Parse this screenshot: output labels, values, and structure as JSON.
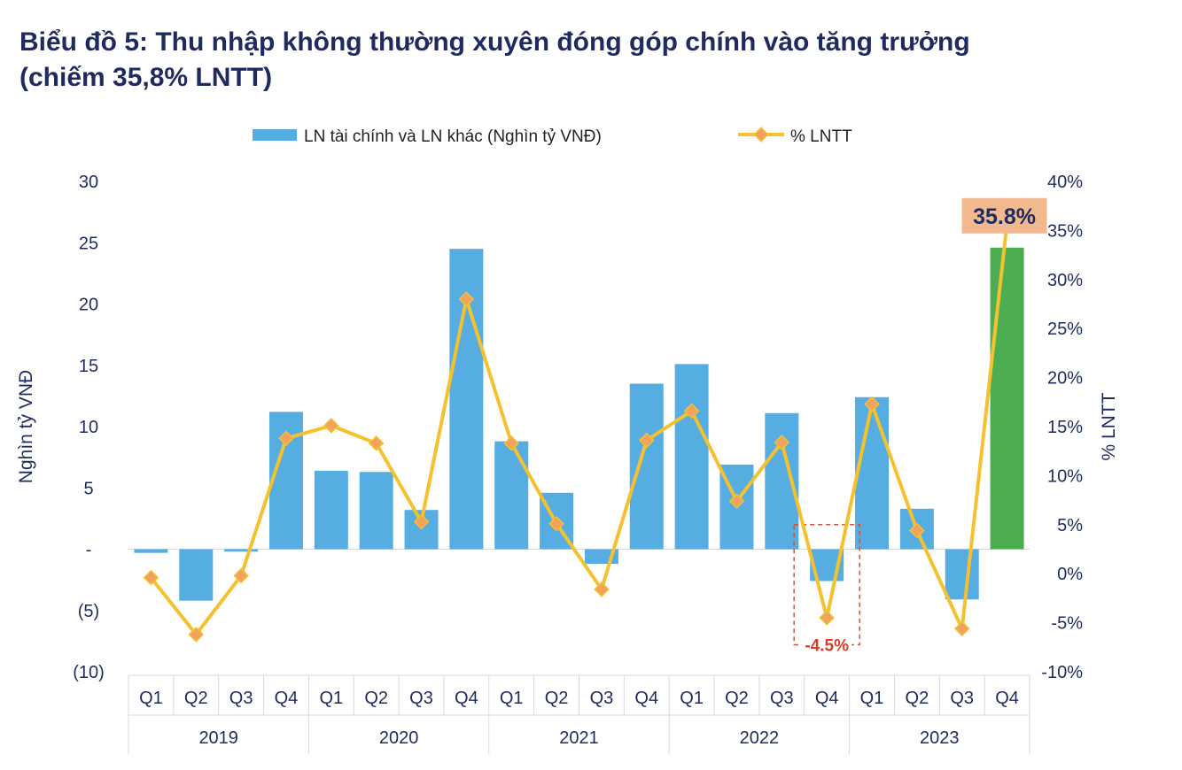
{
  "chart_data": {
    "type": "bar",
    "title": "Biểu đồ 5: Thu nhập không thường xuyên đóng góp chính vào tăng trưởng",
    "subtitle": "(chiếm 35,8% LNTT)",
    "categories": [
      "Q1",
      "Q2",
      "Q3",
      "Q4",
      "Q1",
      "Q2",
      "Q3",
      "Q4",
      "Q1",
      "Q2",
      "Q3",
      "Q4",
      "Q1",
      "Q2",
      "Q3",
      "Q4",
      "Q1",
      "Q2",
      "Q3",
      "Q4"
    ],
    "years": [
      "2019",
      "2020",
      "2021",
      "2022",
      "2023"
    ],
    "series": [
      {
        "name": "LN tài chính và LN khác (Nghìn tỷ VNĐ)",
        "kind": "bar",
        "axis": "left",
        "color": "#56ade2",
        "highlight_color": "#4cae50",
        "highlight_index": 19,
        "values": [
          -0.3,
          -4.2,
          -0.2,
          11.2,
          6.4,
          6.3,
          3.2,
          24.5,
          8.8,
          4.6,
          -1.2,
          13.5,
          15.1,
          6.9,
          11.1,
          -2.6,
          12.4,
          3.3,
          -4.1,
          24.6
        ]
      },
      {
        "name": "% LNTT",
        "kind": "line",
        "axis": "right",
        "color": "#f5c12e",
        "marker_color": "#f0a35e",
        "values": [
          -0.4,
          -6.2,
          -0.2,
          13.8,
          15.1,
          13.3,
          5.3,
          28.0,
          13.3,
          5.1,
          -1.6,
          13.6,
          16.6,
          7.4,
          13.4,
          -4.5,
          17.3,
          4.4,
          -5.6,
          35.8
        ]
      }
    ],
    "ylabel": "Nghìn tỷ VNĐ",
    "y2label": "% LNTT",
    "ylim": [
      -10,
      30
    ],
    "y2lim": [
      -10,
      40
    ],
    "yticks": [
      "(10)",
      "(5)",
      "-",
      "5",
      "10",
      "15",
      "20",
      "25",
      "30"
    ],
    "y2ticks": [
      "-10%",
      "-5%",
      "0%",
      "5%",
      "10%",
      "15%",
      "20%",
      "25%",
      "30%",
      "35%",
      "40%"
    ],
    "annotations": [
      {
        "text": "35.8%",
        "index": 19,
        "style": "callout",
        "background": "#f2b98e",
        "color": "#1f2b5e"
      },
      {
        "text": "-4.5%",
        "index": 15,
        "style": "dashed-box",
        "color": "#d9402b"
      }
    ],
    "legend_position": "top",
    "grid": false
  }
}
